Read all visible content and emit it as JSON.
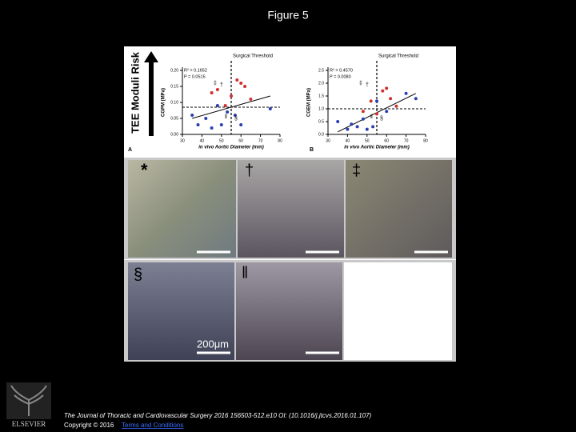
{
  "header": {
    "title": "Figure 5"
  },
  "figure": {
    "side_label": "TEE Moduli Risk",
    "histology": {
      "labels": [
        "*",
        "†",
        "‡",
        "§",
        "‖"
      ],
      "scale": "200μm"
    }
  },
  "chart_data": [
    {
      "type": "scatter",
      "panel": "A",
      "y_label": "CGPM (MPa)",
      "x_label": "in vivo Aortic Diameter (mm)",
      "stats": [
        "R² = 0.1652",
        "P = 0.0515"
      ],
      "threshold_label": "Surgical Threshold",
      "threshold_x": 55,
      "threshold_y": 0.085,
      "xlim": [
        30,
        80
      ],
      "xticks": [
        30,
        40,
        50,
        60,
        70,
        80
      ],
      "ylim": [
        0,
        0.2
      ],
      "yticks": [
        {
          "value": 0,
          "label": "0.00"
        },
        {
          "value": 0.05,
          "label": "0.05"
        },
        {
          "value": 0.1,
          "label": "0.10"
        },
        {
          "value": 0.15,
          "label": "0.15"
        },
        {
          "value": 0.2,
          "label": "0.20"
        }
      ],
      "series": [
        {
          "color": "#d03030",
          "x": [
            45,
            48,
            52,
            55,
            58,
            60,
            62,
            65
          ],
          "values": [
            0.13,
            0.14,
            0.09,
            0.12,
            0.17,
            0.16,
            0.15,
            0.11
          ]
        },
        {
          "color": "#2a3fb0",
          "x": [
            35,
            38,
            42,
            45,
            48,
            50,
            53,
            57,
            60,
            75
          ],
          "values": [
            0.06,
            0.03,
            0.05,
            0.02,
            0.09,
            0.03,
            0.07,
            0.06,
            0.03,
            0.08
          ]
        }
      ],
      "trendline": {
        "x": [
          35,
          75
        ],
        "values": [
          0.05,
          0.12
        ]
      },
      "symbols": [
        "†",
        "‡",
        "§",
        "‖"
      ]
    },
    {
      "type": "scatter",
      "panel": "B",
      "y_label": "CGEM (MPa)",
      "x_label": "in vivo Aortic Diameter (mm)",
      "stats": [
        "R² = 0.4570",
        "P = 0.0080"
      ],
      "threshold_label": "Surgical Threshold",
      "threshold_x": 55,
      "threshold_y": 1.0,
      "xlim": [
        30,
        80
      ],
      "xticks": [
        30,
        40,
        50,
        60,
        70,
        80
      ],
      "ylim": [
        0,
        2.5
      ],
      "yticks": [
        {
          "value": 0,
          "label": "0.0"
        },
        {
          "value": 0.5,
          "label": "0.5"
        },
        {
          "value": 1,
          "label": "1.0"
        },
        {
          "value": 1.5,
          "label": "1.5"
        },
        {
          "value": 2,
          "label": "2.0"
        },
        {
          "value": 2.5,
          "label": "2.5"
        }
      ],
      "series": [
        {
          "color": "#d03030",
          "x": [
            48,
            52,
            55,
            58,
            60,
            62,
            65
          ],
          "values": [
            0.9,
            1.3,
            0.8,
            1.7,
            1.8,
            1.4,
            1.1
          ]
        },
        {
          "color": "#2a3fb0",
          "x": [
            35,
            40,
            42,
            45,
            48,
            50,
            53,
            55,
            60,
            70,
            75
          ],
          "values": [
            0.5,
            0.2,
            0.4,
            0.3,
            0.6,
            0.2,
            0.3,
            1.3,
            0.9,
            1.6,
            1.4
          ]
        }
      ],
      "trendline": {
        "x": [
          35,
          75
        ],
        "values": [
          0.1,
          1.6
        ]
      },
      "symbols": [
        "†",
        "‡",
        "§",
        "‖"
      ]
    }
  ],
  "footer": {
    "publisher": "ELSEVIER",
    "citation": "The Journal of Thoracic and Cardiovascular Surgery 2016 156503-512.e10 OI: (10.1016/j.jtcvs.2016.01.107)",
    "copyright": "Copyright © 2016",
    "link": "Terms and Conditions"
  }
}
